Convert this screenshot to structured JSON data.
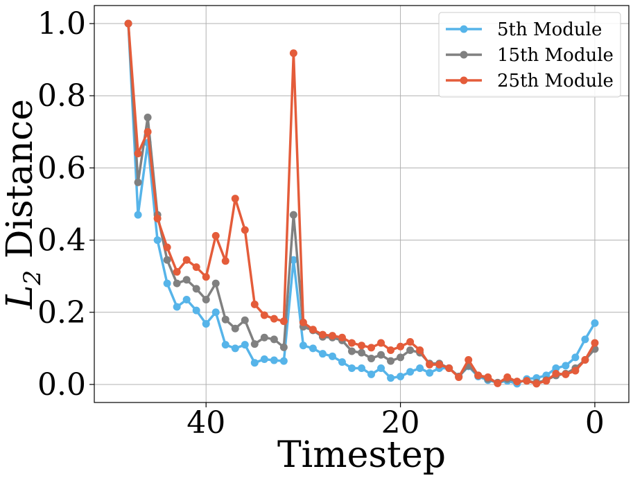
{
  "chart_data": {
    "type": "line",
    "xlabel": "Timestep",
    "ylabel_main": "L",
    "ylabel_sub": "2",
    "ylabel_rest": " Distance",
    "xlim": [
      51.5,
      -3.5
    ],
    "ylim": [
      -0.05,
      1.05
    ],
    "xticks": [
      40,
      20,
      0
    ],
    "xtick_labels": [
      "40",
      "20",
      "0"
    ],
    "yticks": [
      0.0,
      0.2,
      0.4,
      0.6,
      0.8,
      1.0
    ],
    "ytick_labels": [
      "0.0",
      "0.2",
      "0.4",
      "0.6",
      "0.8",
      "1.0"
    ],
    "grid": true,
    "legend_position": "top-right",
    "x": [
      48,
      47,
      46,
      45,
      44,
      43,
      42,
      41,
      40,
      39,
      38,
      37,
      36,
      35,
      34,
      33,
      32,
      31,
      30,
      29,
      28,
      27,
      26,
      25,
      24,
      23,
      22,
      21,
      20,
      19,
      18,
      17,
      16,
      15,
      14,
      13,
      12,
      11,
      10,
      9,
      8,
      7,
      6,
      5,
      4,
      3,
      2,
      1,
      0
    ],
    "series": [
      {
        "name": "5th Module",
        "color": "#56b4e9",
        "values": [
          1.0,
          0.47,
          0.67,
          0.4,
          0.28,
          0.215,
          0.235,
          0.205,
          0.168,
          0.2,
          0.11,
          0.1,
          0.11,
          0.06,
          0.07,
          0.067,
          0.065,
          0.345,
          0.108,
          0.1,
          0.085,
          0.078,
          0.062,
          0.045,
          0.045,
          0.028,
          0.045,
          0.018,
          0.022,
          0.035,
          0.045,
          0.032,
          0.045,
          0.045,
          0.022,
          0.05,
          0.022,
          0.012,
          0.005,
          0.01,
          0.002,
          0.015,
          0.018,
          0.025,
          0.045,
          0.052,
          0.075,
          0.125,
          0.17
        ]
      },
      {
        "name": "15th Module",
        "color": "#808080",
        "values": [
          1.0,
          0.56,
          0.74,
          0.47,
          0.345,
          0.28,
          0.29,
          0.265,
          0.235,
          0.28,
          0.18,
          0.155,
          0.178,
          0.112,
          0.13,
          0.125,
          0.103,
          0.47,
          0.16,
          0.15,
          0.132,
          0.13,
          0.122,
          0.092,
          0.088,
          0.072,
          0.082,
          0.065,
          0.075,
          0.095,
          0.088,
          0.058,
          0.058,
          0.045,
          0.022,
          0.052,
          0.025,
          0.015,
          0.005,
          0.015,
          0.008,
          0.01,
          0.005,
          0.012,
          0.025,
          0.03,
          0.045,
          0.068,
          0.098
        ]
      },
      {
        "name": "25th Module",
        "color": "#e45c3a",
        "values": [
          1.0,
          0.64,
          0.7,
          0.46,
          0.38,
          0.312,
          0.345,
          0.325,
          0.298,
          0.412,
          0.342,
          0.515,
          0.428,
          0.222,
          0.192,
          0.182,
          0.175,
          0.918,
          0.172,
          0.152,
          0.138,
          0.135,
          0.13,
          0.115,
          0.108,
          0.102,
          0.115,
          0.095,
          0.105,
          0.118,
          0.095,
          0.055,
          0.055,
          0.045,
          0.02,
          0.068,
          0.025,
          0.02,
          0.003,
          0.02,
          0.008,
          0.01,
          0.002,
          0.01,
          0.03,
          0.028,
          0.038,
          0.068,
          0.115
        ]
      }
    ]
  }
}
